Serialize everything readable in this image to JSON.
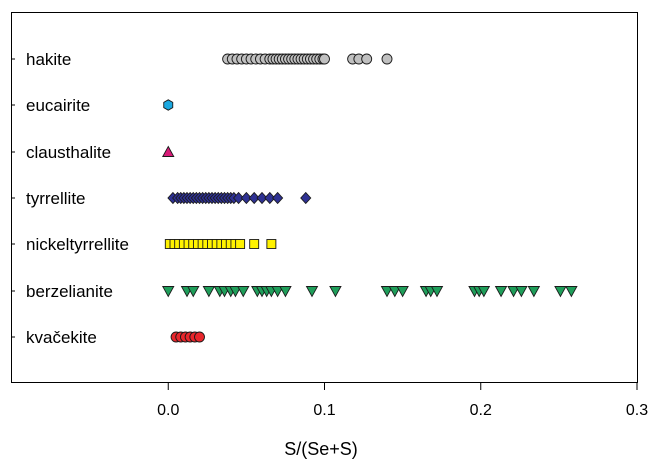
{
  "chart_data": {
    "type": "scatter",
    "title": "",
    "xlabel": "S/(Se+S)",
    "ylabel": "",
    "xlim": [
      -0.1,
      0.3
    ],
    "xticks": [
      "0.0",
      "0.1",
      "0.2",
      "0.3"
    ],
    "xtick_values": [
      0.0,
      0.1,
      0.2,
      0.3
    ],
    "grid": false,
    "legend": "none",
    "categories": [
      "hakite",
      "eucairite",
      "clausthalite",
      "tyrrellite",
      "nickeltyrrellite",
      "berzelianite",
      "kvačekite"
    ],
    "series": [
      {
        "category": "hakite",
        "marker": "circle",
        "color": "#c0c0c0",
        "x": [
          0.038,
          0.041,
          0.044,
          0.047,
          0.05,
          0.053,
          0.056,
          0.059,
          0.062,
          0.065,
          0.067,
          0.069,
          0.071,
          0.073,
          0.075,
          0.077,
          0.079,
          0.081,
          0.083,
          0.085,
          0.087,
          0.089,
          0.091,
          0.093,
          0.095,
          0.097,
          0.099,
          0.1,
          0.118,
          0.122,
          0.127,
          0.14
        ]
      },
      {
        "category": "eucairite",
        "marker": "hexagon",
        "color": "#1ba8e0",
        "x": [
          0.0
        ]
      },
      {
        "category": "clausthalite",
        "marker": "triangle-up",
        "color": "#d81b78",
        "x": [
          0.0
        ]
      },
      {
        "category": "tyrrellite",
        "marker": "diamond",
        "color": "#2e3192",
        "x": [
          0.003,
          0.006,
          0.008,
          0.01,
          0.012,
          0.014,
          0.016,
          0.018,
          0.02,
          0.022,
          0.024,
          0.026,
          0.028,
          0.03,
          0.032,
          0.034,
          0.036,
          0.038,
          0.04,
          0.042,
          0.045,
          0.05,
          0.055,
          0.06,
          0.065,
          0.07,
          0.088
        ]
      },
      {
        "category": "nickeltyrrellite",
        "marker": "square",
        "color": "#fff200",
        "x": [
          0.001,
          0.004,
          0.007,
          0.01,
          0.013,
          0.016,
          0.019,
          0.022,
          0.025,
          0.028,
          0.031,
          0.034,
          0.037,
          0.04,
          0.043,
          0.046,
          0.055,
          0.066
        ]
      },
      {
        "category": "berzelianite",
        "marker": "triangle-down",
        "color": "#1f9e5a",
        "x": [
          0.0,
          0.012,
          0.016,
          0.026,
          0.033,
          0.036,
          0.04,
          0.043,
          0.048,
          0.057,
          0.06,
          0.063,
          0.066,
          0.07,
          0.075,
          0.092,
          0.107,
          0.14,
          0.145,
          0.15,
          0.165,
          0.168,
          0.172,
          0.196,
          0.199,
          0.202,
          0.213,
          0.221,
          0.226,
          0.234,
          0.251,
          0.258
        ]
      },
      {
        "category": "kvačekite",
        "marker": "circle",
        "color": "#e8262c",
        "x": [
          0.005,
          0.008,
          0.011,
          0.014,
          0.017,
          0.02
        ]
      }
    ]
  }
}
